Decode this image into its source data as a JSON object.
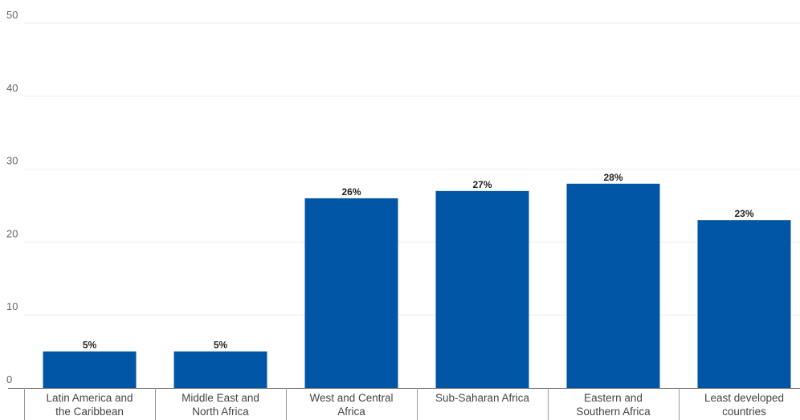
{
  "chart_data": {
    "type": "bar",
    "categories": [
      [
        "Latin America and",
        "the Caribbean"
      ],
      [
        "Middle East and",
        "North Africa"
      ],
      [
        "West and Central",
        "Africa"
      ],
      [
        "Sub-Saharan Africa"
      ],
      [
        "Eastern and",
        "Southern Africa"
      ],
      [
        "Least developed",
        "countries"
      ]
    ],
    "values": [
      5,
      5,
      26,
      27,
      28,
      23
    ],
    "value_labels": [
      "5%",
      "5%",
      "26%",
      "27%",
      "28%",
      "23%"
    ],
    "ylim": [
      0,
      50
    ],
    "yticks": [
      0,
      10,
      20,
      30,
      40,
      50
    ],
    "bar_color": "#0055A4",
    "grid": true,
    "title": "",
    "xlabel": "",
    "ylabel": ""
  }
}
